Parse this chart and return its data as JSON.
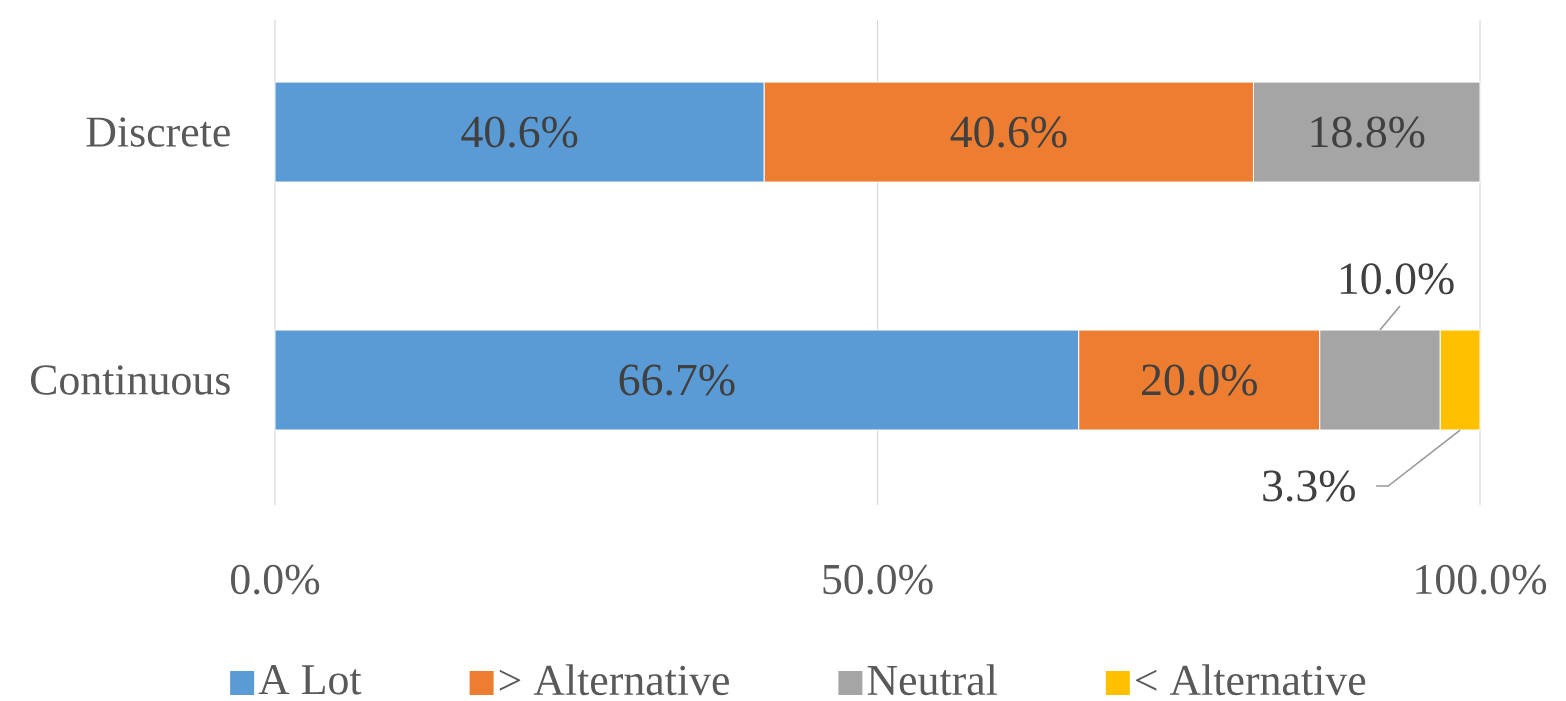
{
  "chart_data": {
    "type": "bar",
    "orientation": "horizontal",
    "stacked": true,
    "categories": [
      "Discrete",
      "Continuous"
    ],
    "series": [
      {
        "name": "A Lot",
        "color": "#5b9bd5",
        "values": [
          40.6,
          66.7
        ],
        "value_labels": [
          "40.6%",
          "66.7%"
        ]
      },
      {
        "name": "> Alternative",
        "color": "#ed7d31",
        "values": [
          40.6,
          20.0
        ],
        "value_labels": [
          "40.6%",
          "20.0%"
        ]
      },
      {
        "name": "Neutral",
        "color": "#a5a5a5",
        "values": [
          18.8,
          10.0
        ],
        "value_labels": [
          "18.8%",
          "10.0%"
        ]
      },
      {
        "name": "< Alternative",
        "color": "#ffc000",
        "values": [
          null,
          3.3
        ],
        "value_labels": [
          null,
          "3.3%"
        ]
      }
    ],
    "xlim": [
      0,
      100
    ],
    "xticks": [
      {
        "value": 0,
        "label": "0.0%"
      },
      {
        "value": 50,
        "label": "50.0%"
      },
      {
        "value": 100,
        "label": "100.0%"
      }
    ],
    "grid": "x",
    "legend": "bottom"
  }
}
